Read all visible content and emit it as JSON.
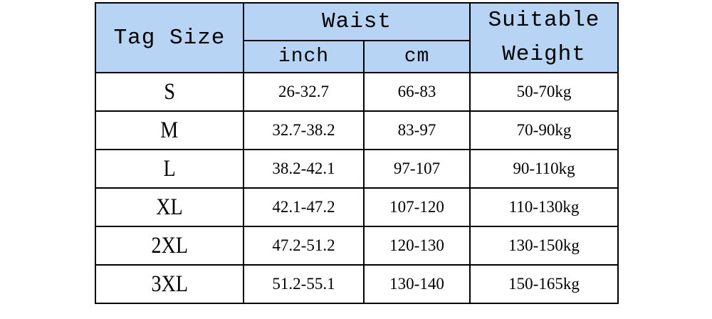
{
  "header": {
    "tag_size": "Tag Size",
    "waist": "Waist",
    "inch": "inch",
    "cm": "cm",
    "suitable_weight": "Suitable Weight"
  },
  "table": {
    "rows": [
      [
        "S",
        "26-32.7",
        "66-83",
        "50-70kg"
      ],
      [
        "M",
        "32.7-38.2",
        "83-97",
        "70-90kg"
      ],
      [
        "L",
        "38.2-42.1",
        "97-107",
        "90-110kg"
      ],
      [
        "XL",
        "42.1-47.2",
        "107-120",
        "110-130kg"
      ],
      [
        "2XL",
        "47.2-51.2",
        "120-130",
        "130-150kg"
      ],
      [
        "3XL",
        "51.2-55.1",
        "130-140",
        "150-165kg"
      ]
    ]
  }
}
